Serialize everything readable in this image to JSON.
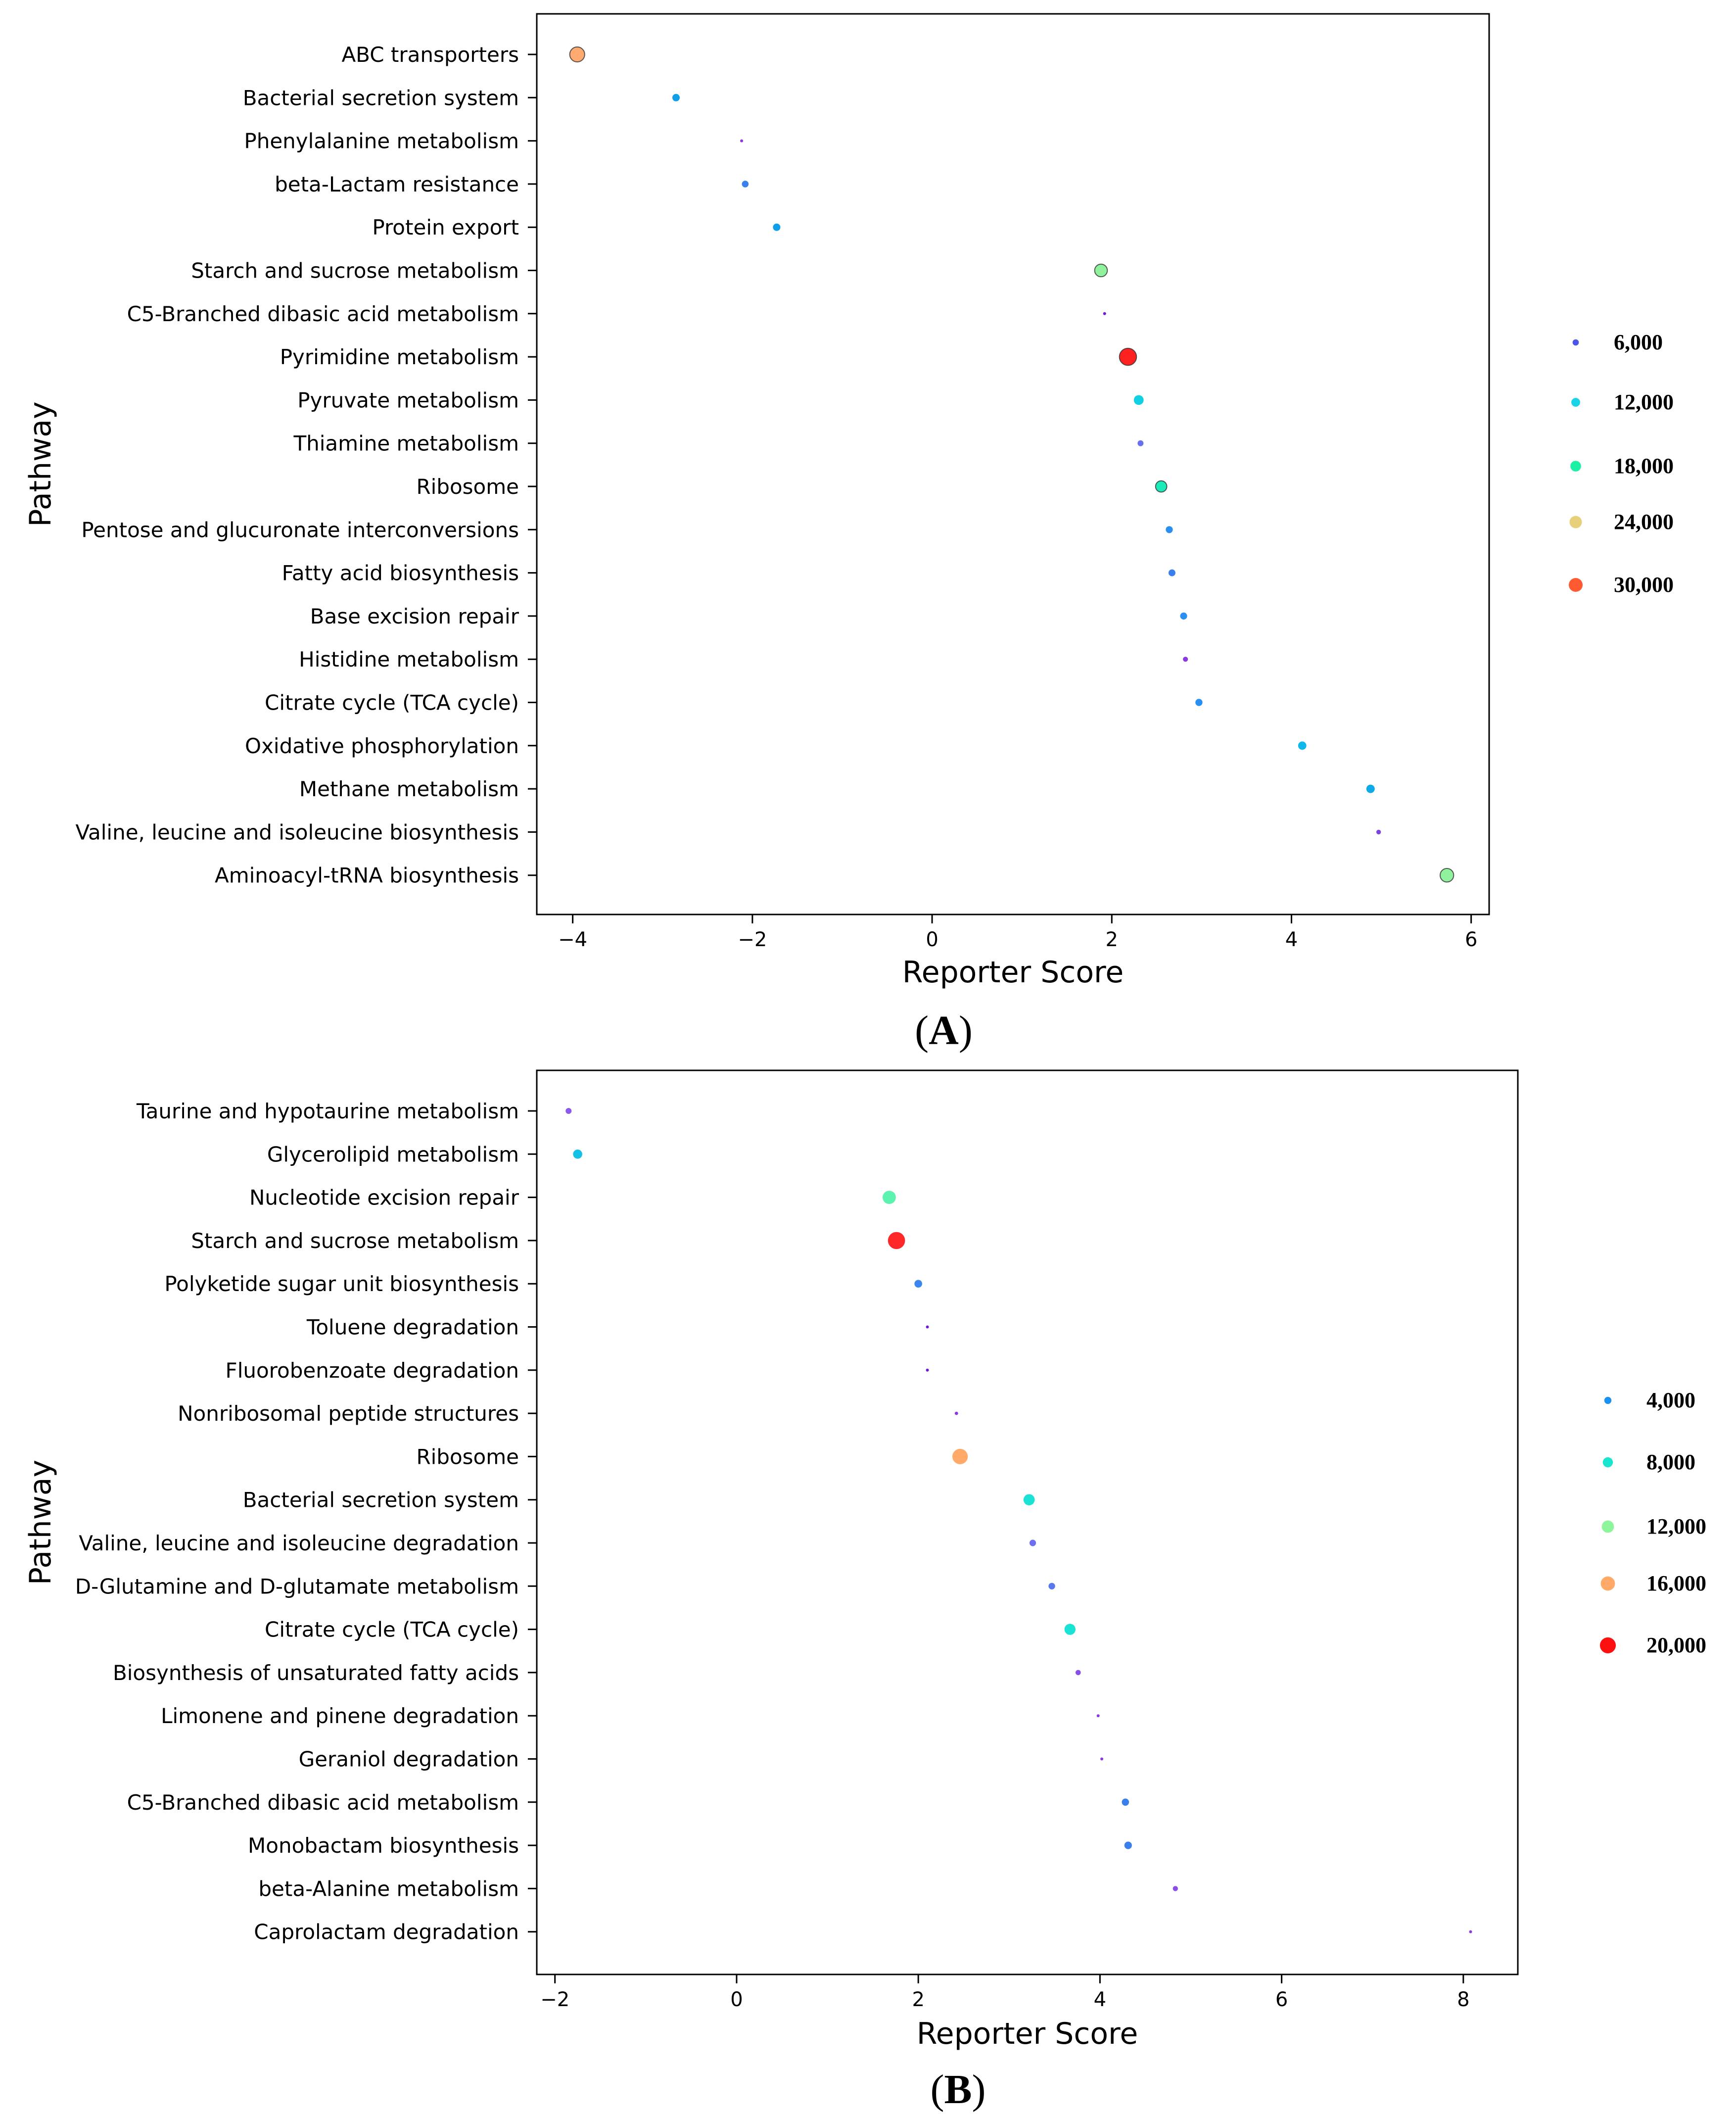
{
  "chart_data": [
    {
      "type": "scatter",
      "panel_label": "A",
      "xlabel": "Reporter Score",
      "ylabel": "Pathway",
      "xlim": [
        -4.4,
        6.2
      ],
      "xticks": [
        -4,
        -2,
        0,
        2,
        4,
        6
      ],
      "xtick_labels": [
        "−4",
        "−2",
        "0",
        "2",
        "4",
        "6"
      ],
      "legend_position": "right",
      "legend": [
        {
          "label": "6,000",
          "size": 6000,
          "color": "#4b55e8"
        },
        {
          "label": "12,000",
          "size": 12000,
          "color": "#1ad3e6"
        },
        {
          "label": "18,000",
          "size": 18000,
          "color": "#1bf0a4"
        },
        {
          "label": "24,000",
          "size": 24000,
          "color": "#e8d07a"
        },
        {
          "label": "30,000",
          "size": 30000,
          "color": "#ff5a30"
        }
      ],
      "points": [
        {
          "pathway": "ABC transporters",
          "score": -3.95,
          "size": 24500,
          "color": "#ffaa70"
        },
        {
          "pathway": "Bacterial secretion system",
          "score": -2.85,
          "size": 6000,
          "color": "#0e9fe8"
        },
        {
          "pathway": "Phenylalanine metabolism",
          "score": -2.12,
          "size": 900,
          "color": "#8a3ae0"
        },
        {
          "pathway": "beta-Lactam resistance",
          "score": -2.08,
          "size": 5000,
          "color": "#3a80ec"
        },
        {
          "pathway": "Protein export",
          "score": -1.73,
          "size": 6000,
          "color": "#0e9fe8"
        },
        {
          "pathway": "Starch and sucrose metabolism",
          "score": 1.88,
          "size": 17500,
          "color": "#90f29c"
        },
        {
          "pathway": "C5-Branched dibasic acid metabolism",
          "score": 1.92,
          "size": 100,
          "color": "#6a1ad8"
        },
        {
          "pathway": "Pyrimidine metabolism",
          "score": 2.18,
          "size": 32000,
          "color": "#ff2020"
        },
        {
          "pathway": "Pyruvate metabolism",
          "score": 2.3,
          "size": 10500,
          "color": "#12d0e4"
        },
        {
          "pathway": "Thiamine metabolism",
          "score": 2.32,
          "size": 3800,
          "color": "#6a6ef0"
        },
        {
          "pathway": "Ribosome",
          "score": 2.55,
          "size": 14000,
          "color": "#1bebb8"
        },
        {
          "pathway": "Pentose and glucuronate interconversions",
          "score": 2.64,
          "size": 5400,
          "color": "#2a8ff0"
        },
        {
          "pathway": "Fatty acid biosynthesis",
          "score": 2.67,
          "size": 5200,
          "color": "#3a80ec"
        },
        {
          "pathway": "Base excision repair",
          "score": 2.8,
          "size": 5400,
          "color": "#2a8ff0"
        },
        {
          "pathway": "Histidine metabolism",
          "score": 2.82,
          "size": 2800,
          "color": "#8a3ae0"
        },
        {
          "pathway": "Citrate cycle (TCA cycle)",
          "score": 2.97,
          "size": 5600,
          "color": "#2a8ff0"
        },
        {
          "pathway": "Oxidative phosphorylation",
          "score": 4.12,
          "size": 7600,
          "color": "#0eb8ea"
        },
        {
          "pathway": "Methane metabolism",
          "score": 4.88,
          "size": 7800,
          "color": "#0eaae8"
        },
        {
          "pathway": "Valine, leucine and isoleucine biosynthesis",
          "score": 4.97,
          "size": 2400,
          "color": "#7a44e4"
        },
        {
          "pathway": "Aminoacyl-tRNA biosynthesis",
          "score": 5.73,
          "size": 20000,
          "color": "#90f29c"
        }
      ]
    },
    {
      "type": "scatter",
      "panel_label": "B",
      "xlabel": "Reporter Score",
      "ylabel": "Pathway",
      "xlim": [
        -2.2,
        8.6
      ],
      "xticks": [
        -2,
        0,
        2,
        4,
        6,
        8
      ],
      "xtick_labels": [
        "−2",
        "0",
        "2",
        "4",
        "6",
        "8"
      ],
      "legend_position": "right",
      "legend": [
        {
          "label": "4,000",
          "size": 4000,
          "color": "#1a90f0"
        },
        {
          "label": "8,000",
          "size": 8000,
          "color": "#1ae6d0"
        },
        {
          "label": "12,000",
          "size": 12000,
          "color": "#8ef59a"
        },
        {
          "label": "16,000",
          "size": 16000,
          "color": "#ffaa68"
        },
        {
          "label": "20,000",
          "size": 20000,
          "color": "#ff1010"
        }
      ],
      "points": [
        {
          "pathway": "Taurine and hypotaurine metabolism",
          "score": -1.85,
          "size": 2500,
          "color": "#8a58ec"
        },
        {
          "pathway": "Glycerolipid metabolism",
          "score": -1.75,
          "size": 6000,
          "color": "#12c2e6"
        },
        {
          "pathway": "Nucleotide excision repair",
          "score": 1.68,
          "size": 12500,
          "color": "#5cf2b0"
        },
        {
          "pathway": "Starch and sucrose metabolism",
          "score": 1.76,
          "size": 21000,
          "color": "#ff2828"
        },
        {
          "pathway": "Polyketide sugar unit biosynthesis",
          "score": 2.0,
          "size": 4200,
          "color": "#3a86ee"
        },
        {
          "pathway": "Toluene degradation",
          "score": 2.1,
          "size": 100,
          "color": "#6a1ad8"
        },
        {
          "pathway": "Fluorobenzoate degradation",
          "score": 2.1,
          "size": 100,
          "color": "#6a1ad8"
        },
        {
          "pathway": "Nonribosomal peptide structures",
          "score": 2.42,
          "size": 800,
          "color": "#8a3ae0"
        },
        {
          "pathway": "Ribosome",
          "score": 2.46,
          "size": 17000,
          "color": "#ffaa68"
        },
        {
          "pathway": "Bacterial secretion system",
          "score": 3.22,
          "size": 9000,
          "color": "#1ae2d4"
        },
        {
          "pathway": "Valine, leucine and isoleucine degradation",
          "score": 3.26,
          "size": 3000,
          "color": "#6e6ef0"
        },
        {
          "pathway": "D-Glutamine and D-glutamate metabolism",
          "score": 3.47,
          "size": 3100,
          "color": "#5a78ee"
        },
        {
          "pathway": "Citrate cycle (TCA cycle)",
          "score": 3.67,
          "size": 8800,
          "color": "#1ae2d4"
        },
        {
          "pathway": "Biosynthesis of unsaturated fatty acids",
          "score": 3.76,
          "size": 2000,
          "color": "#8a4ee8"
        },
        {
          "pathway": "Limonene and pinene degradation",
          "score": 3.98,
          "size": 500,
          "color": "#8a3ae0"
        },
        {
          "pathway": "Geraniol degradation",
          "score": 4.02,
          "size": 100,
          "color": "#8a3ae0"
        },
        {
          "pathway": "C5-Branched dibasic acid metabolism",
          "score": 4.28,
          "size": 3700,
          "color": "#3a80ec"
        },
        {
          "pathway": "Monobactam biosynthesis",
          "score": 4.31,
          "size": 4000,
          "color": "#3a80ec"
        },
        {
          "pathway": "beta-Alanine metabolism",
          "score": 4.83,
          "size": 1900,
          "color": "#8a4ee8"
        },
        {
          "pathway": "Caprolactam degradation",
          "score": 8.08,
          "size": 200,
          "color": "#8a3ae0"
        }
      ]
    }
  ]
}
